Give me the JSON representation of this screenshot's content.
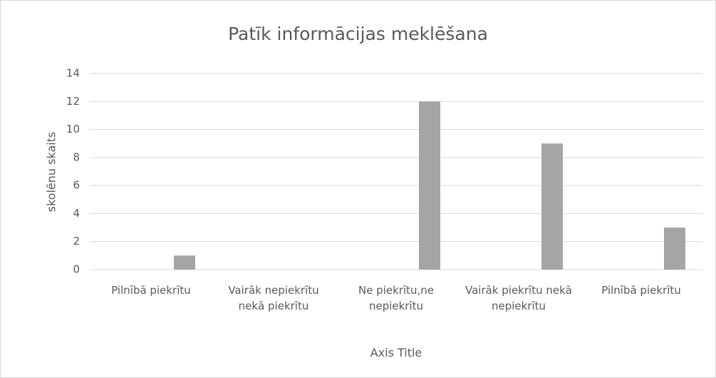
{
  "chart_data": {
    "type": "bar",
    "title": "Patīk informācijas meklēšana",
    "x_label": "Axis Title",
    "y_label": "skolēnu skaits",
    "categories": [
      "Pilnībā piekrītu",
      "Vairāk nepiekrītu nekā piekrītu",
      "Ne piekrītu,ne nepiekrītu",
      "Vairāk piekrītu nekā nepiekrītu",
      "Pilnībā piekrītu"
    ],
    "values": [
      1,
      0,
      12,
      9,
      3
    ],
    "color": "#a5a5a5",
    "ylim": [
      0,
      14
    ],
    "yticks": [
      0,
      2,
      4,
      6,
      8,
      10,
      12,
      14
    ],
    "grid": true
  }
}
